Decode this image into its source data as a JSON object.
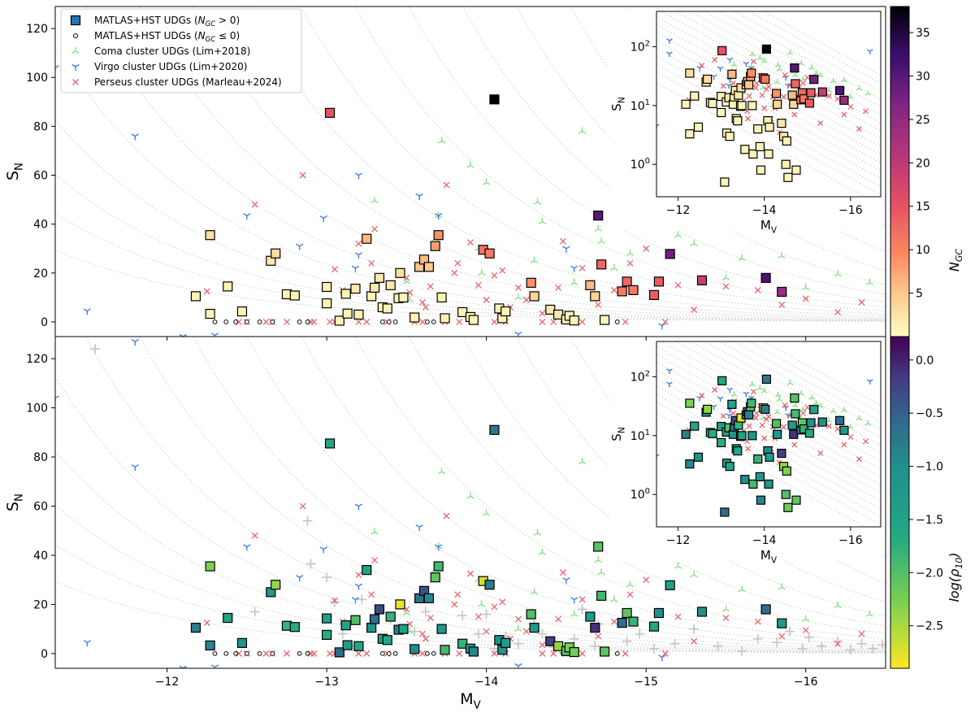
{
  "chart_data": {
    "type": "scatter",
    "x_axis": {
      "label": "M",
      "label_sub": "V",
      "lim": [
        -11.3,
        -16.5
      ],
      "ticks": [
        -12,
        -13,
        -14,
        -15,
        -16
      ],
      "tick_labels": [
        "−12",
        "−13",
        "−14",
        "−15",
        "−16"
      ]
    },
    "y_axis": {
      "label": "S",
      "label_sub": "N",
      "lim": [
        -6,
        129
      ],
      "ticks": [
        0,
        20,
        40,
        60,
        80,
        100,
        120
      ],
      "tick_labels": [
        "0",
        "20",
        "40",
        "60",
        "80",
        "100",
        "120"
      ]
    },
    "inset_axes": {
      "xlabel": "M",
      "xlabel_sub": "V",
      "ylabel": "S",
      "ylabel_sub": "N",
      "x_ticks": [
        -12,
        -14,
        -16
      ],
      "x_tick_labels": [
        "−12",
        "−14",
        "−16"
      ],
      "y_log_ticks": [
        0,
        1,
        2
      ],
      "y_tick_base": "10",
      "ylim_log": [
        -0.55,
        2.6
      ],
      "xlim": [
        -11.5,
        -16.7
      ]
    },
    "legend": {
      "location": "top-left",
      "entries": [
        {
          "pre": "MATLAS+HST UDGs (",
          "sub": "GC",
          "post": " > 0)",
          "marker": "square",
          "color": "#1f77b4"
        },
        {
          "pre": "MATLAS+HST UDGs (",
          "sub": "GC",
          "post": " ≤ 0)",
          "marker": "circle",
          "color": "#000000"
        },
        {
          "pre": "Coma cluster UDGs (Lim+2018)",
          "sub": "",
          "post": "",
          "marker": "tri-down",
          "color": "#7ee07e"
        },
        {
          "pre": "Virgo cluster UDGs (Lim+2020)",
          "sub": "",
          "post": "",
          "marker": "tri-up",
          "color": "#3a78d8"
        },
        {
          "pre": "Perseus cluster UDGs (Marleau+2024)",
          "sub": "",
          "post": "",
          "marker": "x",
          "color": "#e8636b"
        }
      ]
    },
    "colorbars": [
      {
        "label": "N",
        "label_sub": "GC",
        "cmap": "magma_r",
        "range": [
          0,
          38
        ],
        "ticks": [
          5,
          10,
          15,
          20,
          25,
          30,
          35
        ],
        "tick_labels": [
          "5",
          "10",
          "15",
          "20",
          "25",
          "30",
          "35"
        ]
      },
      {
        "label": "log(ρ",
        "label_sub": "10",
        "label_post": ")",
        "cmap": "viridis_r",
        "range": [
          -2.9,
          0.22
        ],
        "ticks": [
          0.0,
          -0.5,
          -1.0,
          -1.5,
          -2.0,
          -2.5
        ],
        "tick_labels": [
          "0.0",
          "−0.5",
          "−1.0",
          "−1.5",
          "−2.0",
          "−2.5"
        ]
      }
    ],
    "matlas_udgs": [
      {
        "mv": -12.18,
        "sn": 10.5,
        "ngc": 1,
        "logrho": -0.8
      },
      {
        "mv": -12.27,
        "sn": 3.3,
        "ngc": 1,
        "logrho": -0.9
      },
      {
        "mv": -12.27,
        "sn": 35.5,
        "ngc": 3,
        "logrho": -2.3
      },
      {
        "mv": -12.38,
        "sn": 14.5,
        "ngc": 1,
        "logrho": -1.6
      },
      {
        "mv": -12.47,
        "sn": 4.3,
        "ngc": 1,
        "logrho": -1.1
      },
      {
        "mv": -12.65,
        "sn": 25.0,
        "ngc": 2,
        "logrho": -1.1
      },
      {
        "mv": -12.68,
        "sn": 28.0,
        "ngc": 3,
        "logrho": -2.4
      },
      {
        "mv": -12.75,
        "sn": 11.3,
        "ngc": 1,
        "logrho": -1.8
      },
      {
        "mv": -12.8,
        "sn": 10.8,
        "ngc": 1,
        "logrho": -1.7
      },
      {
        "mv": -13.0,
        "sn": 14.3,
        "ngc": 1,
        "logrho": -1.4
      },
      {
        "mv": -13.0,
        "sn": 7.6,
        "ngc": 1,
        "logrho": -1.7
      },
      {
        "mv": -13.02,
        "sn": 85.5,
        "ngc": 15,
        "logrho": -1.6
      },
      {
        "mv": -13.08,
        "sn": 0.5,
        "ngc": 1,
        "logrho": -0.6
      },
      {
        "mv": -13.12,
        "sn": 11.5,
        "ngc": 1,
        "logrho": -1.5
      },
      {
        "mv": -13.13,
        "sn": 3.4,
        "ngc": 1,
        "logrho": -1.3
      },
      {
        "mv": -13.18,
        "sn": 13.6,
        "ngc": 2,
        "logrho": -2.0
      },
      {
        "mv": -13.2,
        "sn": 3.0,
        "ngc": 1,
        "logrho": -1.6
      },
      {
        "mv": -13.25,
        "sn": 34.0,
        "ngc": 6,
        "logrho": -1.5
      },
      {
        "mv": -13.28,
        "sn": 10.5,
        "ngc": 1,
        "logrho": -1.1
      },
      {
        "mv": -13.3,
        "sn": 14.0,
        "ngc": 2,
        "logrho": -0.6
      },
      {
        "mv": -13.33,
        "sn": 18.0,
        "ngc": 2,
        "logrho": -0.3
      },
      {
        "mv": -13.35,
        "sn": 6.0,
        "ngc": 1,
        "logrho": -1.3
      },
      {
        "mv": -13.38,
        "sn": 5.5,
        "ngc": 1,
        "logrho": -1.6
      },
      {
        "mv": -13.4,
        "sn": 15.0,
        "ngc": 2,
        "logrho": -1.8
      },
      {
        "mv": -13.45,
        "sn": 9.7,
        "ngc": 1,
        "logrho": -0.9
      },
      {
        "mv": -13.46,
        "sn": 20.0,
        "ngc": 3,
        "logrho": -2.8
      },
      {
        "mv": -13.48,
        "sn": 10.0,
        "ngc": 1,
        "logrho": -1.4
      },
      {
        "mv": -13.55,
        "sn": 1.8,
        "ngc": 1,
        "logrho": -1.0
      },
      {
        "mv": -13.58,
        "sn": 22.5,
        "ngc": 5,
        "logrho": -0.7
      },
      {
        "mv": -13.61,
        "sn": 25.5,
        "ngc": 6,
        "logrho": -0.4
      },
      {
        "mv": -13.64,
        "sn": 22.5,
        "ngc": 5,
        "logrho": -0.9
      },
      {
        "mv": -13.68,
        "sn": 31.0,
        "ngc": 8,
        "logrho": -2.1
      },
      {
        "mv": -13.7,
        "sn": 35.5,
        "ngc": 9,
        "logrho": -1.9
      },
      {
        "mv": -13.72,
        "sn": 10.0,
        "ngc": 1,
        "logrho": -1.2
      },
      {
        "mv": -13.74,
        "sn": 1.5,
        "ngc": 1,
        "logrho": -1.9
      },
      {
        "mv": -13.85,
        "sn": 4.0,
        "ngc": 1,
        "logrho": -1.8
      },
      {
        "mv": -13.9,
        "sn": 2.0,
        "ngc": 1,
        "logrho": -1.2
      },
      {
        "mv": -13.92,
        "sn": 0.8,
        "ngc": 1,
        "logrho": -0.9
      },
      {
        "mv": -13.98,
        "sn": 29.5,
        "ngc": 12,
        "logrho": -2.7
      },
      {
        "mv": -14.02,
        "sn": 28.0,
        "ngc": 11,
        "logrho": -0.8
      },
      {
        "mv": -14.05,
        "sn": 91.0,
        "ngc": 38,
        "logrho": -0.75
      },
      {
        "mv": -14.08,
        "sn": 5.5,
        "ngc": 1,
        "logrho": -1.0
      },
      {
        "mv": -14.1,
        "sn": 1.5,
        "ngc": 1,
        "logrho": -1.1
      },
      {
        "mv": -14.12,
        "sn": 4.3,
        "ngc": 1,
        "logrho": -1.3
      },
      {
        "mv": -14.28,
        "sn": 16.0,
        "ngc": 9,
        "logrho": -2.0
      },
      {
        "mv": -14.3,
        "sn": 10.5,
        "ngc": 4,
        "logrho": -1.2
      },
      {
        "mv": -14.4,
        "sn": 5.0,
        "ngc": 2,
        "logrho": -0.2
      },
      {
        "mv": -14.45,
        "sn": 3.0,
        "ngc": 2,
        "logrho": -2.4
      },
      {
        "mv": -14.5,
        "sn": 1.0,
        "ngc": 1,
        "logrho": -2.0
      },
      {
        "mv": -14.52,
        "sn": 2.5,
        "ngc": 1,
        "logrho": -2.3
      },
      {
        "mv": -14.55,
        "sn": 0.6,
        "ngc": 1,
        "logrho": -2.2
      },
      {
        "mv": -14.65,
        "sn": 15.0,
        "ngc": 6,
        "logrho": -1.3
      },
      {
        "mv": -14.68,
        "sn": 10.5,
        "ngc": 4,
        "logrho": -0.1
      },
      {
        "mv": -14.7,
        "sn": 43.5,
        "ngc": 30,
        "logrho": -2.05
      },
      {
        "mv": -14.72,
        "sn": 23.5,
        "ngc": 13,
        "logrho": -1.9
      },
      {
        "mv": -14.74,
        "sn": 0.8,
        "ngc": 1,
        "logrho": -2.1
      },
      {
        "mv": -14.85,
        "sn": 12.5,
        "ngc": 11,
        "logrho": -0.6
      },
      {
        "mv": -14.88,
        "sn": 16.5,
        "ngc": 13,
        "logrho": -2.1
      },
      {
        "mv": -14.92,
        "sn": 13.0,
        "ngc": 11,
        "logrho": -1.8
      },
      {
        "mv": -15.05,
        "sn": 11.0,
        "ngc": 14,
        "logrho": -1.6
      },
      {
        "mv": -15.08,
        "sn": 16.5,
        "ngc": 14,
        "logrho": -1.0
      },
      {
        "mv": -15.15,
        "sn": 27.8,
        "ngc": 28,
        "logrho": -1.4
      },
      {
        "mv": -15.35,
        "sn": 17.0,
        "ngc": 19,
        "logrho": -1.0
      },
      {
        "mv": -15.75,
        "sn": 18.0,
        "ngc": 31,
        "logrho": -0.6
      },
      {
        "mv": -15.85,
        "sn": 12.3,
        "ngc": 24,
        "logrho": -1.3
      }
    ],
    "matlas_no_gc_mv": [
      -12.3,
      -12.37,
      -12.43,
      -12.5,
      -12.58,
      -12.66,
      -12.83,
      -12.88,
      -13.35,
      -13.39,
      -13.43,
      -13.63,
      -13.67,
      -14.48,
      -14.51,
      -14.82
    ],
    "coma_udgs": [
      {
        "mv": -13.52,
        "sn": 9.0
      },
      {
        "mv": -13.5,
        "sn": 16.5
      },
      {
        "mv": -13.6,
        "sn": 22.0
      },
      {
        "mv": -13.68,
        "sn": 34.0
      },
      {
        "mv": -13.7,
        "sn": 43.5
      },
      {
        "mv": -13.72,
        "sn": 74.0
      },
      {
        "mv": -13.9,
        "sn": 64.0
      },
      {
        "mv": -13.95,
        "sn": 30.0
      },
      {
        "mv": -14.0,
        "sn": 57.0
      },
      {
        "mv": -13.97,
        "sn": 20.0
      },
      {
        "mv": -14.2,
        "sn": 10.0
      },
      {
        "mv": -14.3,
        "sn": 25.0
      },
      {
        "mv": -14.32,
        "sn": 49.0
      },
      {
        "mv": -14.35,
        "sn": 41.0
      },
      {
        "mv": -14.55,
        "sn": 16.0
      },
      {
        "mv": -14.6,
        "sn": 78.0
      },
      {
        "mv": -14.7,
        "sn": 38.0
      },
      {
        "mv": -14.72,
        "sn": 33.0
      },
      {
        "mv": -14.8,
        "sn": 22.0
      },
      {
        "mv": -14.86,
        "sn": 52.0
      },
      {
        "mv": -14.9,
        "sn": 28.0
      },
      {
        "mv": -15.1,
        "sn": 44.0
      },
      {
        "mv": -15.2,
        "sn": 35.5
      },
      {
        "mv": -15.3,
        "sn": 32.0
      },
      {
        "mv": -15.5,
        "sn": 18.0
      },
      {
        "mv": -15.6,
        "sn": 26.0
      },
      {
        "mv": -15.85,
        "sn": 27.0
      },
      {
        "mv": -16.0,
        "sn": 14.0
      },
      {
        "mv": -16.2,
        "sn": 19.5
      },
      {
        "mv": -16.4,
        "sn": 16.0
      },
      {
        "mv": -13.3,
        "sn": 49.5
      }
    ],
    "virgo_udgs": [
      {
        "mv": -11.3,
        "sn": 104.0
      },
      {
        "mv": -11.5,
        "sn": 4.5
      },
      {
        "mv": -11.8,
        "sn": 76.0
      },
      {
        "mv": -12.1,
        "sn": -6.0
      },
      {
        "mv": -12.5,
        "sn": 43.5
      },
      {
        "mv": -12.83,
        "sn": 31.0
      },
      {
        "mv": -12.98,
        "sn": 42.5
      },
      {
        "mv": -13.18,
        "sn": 22.0
      },
      {
        "mv": -13.2,
        "sn": 27.5
      },
      {
        "mv": -13.2,
        "sn": 60.0
      },
      {
        "mv": -13.58,
        "sn": 51.5
      },
      {
        "mv": -13.7,
        "sn": 43.5
      },
      {
        "mv": -14.2,
        "sn": -5.0
      },
      {
        "mv": -14.5,
        "sn": 30.0
      },
      {
        "mv": -14.55,
        "sn": 22.0
      },
      {
        "mv": -15.1,
        "sn": -1.5
      },
      {
        "mv": -16.45,
        "sn": 84.0
      },
      {
        "mv": -11.8,
        "sn": 127.0
      },
      {
        "mv": -12.3,
        "sn": -5.5
      }
    ],
    "perseus_udgs": [
      {
        "mv": -12.25,
        "sn": 12.5
      },
      {
        "mv": -12.55,
        "sn": 48.0
      },
      {
        "mv": -12.85,
        "sn": 60.0
      },
      {
        "mv": -13.05,
        "sn": 21.5
      },
      {
        "mv": -13.1,
        "sn": 13.0
      },
      {
        "mv": -13.2,
        "sn": 32.0
      },
      {
        "mv": -13.28,
        "sn": 24.0
      },
      {
        "mv": -13.5,
        "sn": 18.0
      },
      {
        "mv": -13.52,
        "sn": 12.0
      },
      {
        "mv": -13.6,
        "sn": 8.0
      },
      {
        "mv": -13.62,
        "sn": 6.0
      },
      {
        "mv": -13.65,
        "sn": 14.5
      },
      {
        "mv": -13.75,
        "sn": 56.0
      },
      {
        "mv": -13.8,
        "sn": 20.0
      },
      {
        "mv": -13.82,
        "sn": 24.0
      },
      {
        "mv": -13.9,
        "sn": 32.5
      },
      {
        "mv": -13.95,
        "sn": 15.0
      },
      {
        "mv": -14.0,
        "sn": 9.0
      },
      {
        "mv": -14.05,
        "sn": 19.0
      },
      {
        "mv": -14.15,
        "sn": 6.0
      },
      {
        "mv": -14.2,
        "sn": 14.0
      },
      {
        "mv": -14.25,
        "sn": 9.0
      },
      {
        "mv": -14.35,
        "sn": 3.5
      },
      {
        "mv": -14.45,
        "sn": 14.0
      },
      {
        "mv": -14.48,
        "sn": 33.0
      },
      {
        "mv": -14.6,
        "sn": 22.0
      },
      {
        "mv": -14.7,
        "sn": 7.0
      },
      {
        "mv": -14.8,
        "sn": 13.0
      },
      {
        "mv": -14.9,
        "sn": 24.0
      },
      {
        "mv": -15.0,
        "sn": 30.0
      },
      {
        "mv": -15.2,
        "sn": 15.0
      },
      {
        "mv": -15.3,
        "sn": 5.0
      },
      {
        "mv": -15.5,
        "sn": 14.5
      },
      {
        "mv": -15.7,
        "sn": 13.0
      },
      {
        "mv": -15.85,
        "sn": 7.0
      },
      {
        "mv": -16.0,
        "sn": 9.5
      },
      {
        "mv": -16.2,
        "sn": 4.0
      },
      {
        "mv": -16.35,
        "sn": 8.0
      },
      {
        "mv": -13.3,
        "sn": 38.0
      },
      {
        "mv": -14.1,
        "sn": 21.0
      }
    ],
    "perseus_zero_mv": [
      -12.45,
      -12.5,
      -12.62,
      -12.66,
      -12.75,
      -12.9,
      -12.92,
      -13.02,
      -13.05,
      -13.2,
      -13.25,
      -13.38,
      -13.55,
      -13.6,
      -13.74,
      -13.83,
      -13.92,
      -14.05,
      -14.12,
      -14.35,
      -14.42,
      -14.52,
      -14.6,
      -14.75,
      -14.87,
      -15.12
    ],
    "gray_reference_points": [
      {
        "mv": -11.55,
        "sn": 124.0
      },
      {
        "mv": -12.55,
        "sn": 17.0
      },
      {
        "mv": -12.88,
        "sn": 54.0
      },
      {
        "mv": -12.9,
        "sn": 36.5
      },
      {
        "mv": -13.0,
        "sn": 31.0
      },
      {
        "mv": -13.05,
        "sn": 21.0
      },
      {
        "mv": -13.1,
        "sn": 8.0
      },
      {
        "mv": -13.15,
        "sn": 3.0
      },
      {
        "mv": -13.22,
        "sn": 22.0
      },
      {
        "mv": -13.4,
        "sn": 14.0
      },
      {
        "mv": -13.55,
        "sn": 9.0
      },
      {
        "mv": -13.62,
        "sn": 17.0
      },
      {
        "mv": -13.85,
        "sn": 15.5
      },
      {
        "mv": -13.95,
        "sn": 8.0
      },
      {
        "mv": -14.0,
        "sn": 16.0
      },
      {
        "mv": -14.05,
        "sn": 2.0
      },
      {
        "mv": -14.12,
        "sn": 7.0
      },
      {
        "mv": -14.2,
        "sn": 4.0
      },
      {
        "mv": -14.3,
        "sn": 12.0
      },
      {
        "mv": -14.35,
        "sn": 8.0
      },
      {
        "mv": -14.42,
        "sn": 2.5
      },
      {
        "mv": -14.55,
        "sn": 6.0
      },
      {
        "mv": -14.6,
        "sn": 18.0
      },
      {
        "mv": -14.68,
        "sn": 3.0
      },
      {
        "mv": -14.7,
        "sn": 12.0
      },
      {
        "mv": -14.88,
        "sn": 5.0
      },
      {
        "mv": -14.96,
        "sn": 8.0
      },
      {
        "mv": -15.05,
        "sn": 2.0
      },
      {
        "mv": -15.18,
        "sn": 4.0
      },
      {
        "mv": -15.3,
        "sn": 10.0
      },
      {
        "mv": -15.45,
        "sn": 3.0
      },
      {
        "mv": -15.6,
        "sn": 1.0
      },
      {
        "mv": -15.7,
        "sn": 6.0
      },
      {
        "mv": -15.82,
        "sn": 4.5
      },
      {
        "mv": -15.9,
        "sn": 9.0
      },
      {
        "mv": -15.98,
        "sn": 2.0
      },
      {
        "mv": -16.02,
        "sn": 6.5
      },
      {
        "mv": -16.1,
        "sn": 3.0
      },
      {
        "mv": -16.2,
        "sn": 5.0
      },
      {
        "mv": -16.28,
        "sn": 1.5
      },
      {
        "mv": -16.35,
        "sn": 4.0
      },
      {
        "mv": -16.42,
        "sn": 2.0
      },
      {
        "mv": -16.48,
        "sn": 3.5
      },
      {
        "mv": -14.48,
        "sn": 0.5
      }
    ],
    "reference_curve_offsets": [
      -0.7,
      -0.3,
      0.0,
      0.3,
      0.6,
      0.9,
      1.2,
      1.5,
      1.8,
      2.1,
      2.4,
      2.7,
      3.0,
      3.3,
      3.6,
      3.9,
      4.2
    ]
  },
  "colors": {
    "axes": "#000000",
    "curves": "#c8c8c8",
    "coma": "#7ee07e",
    "virgo": "#3a78d8",
    "perseus": "#e8636b",
    "gray_points": "#c4c4c4"
  }
}
